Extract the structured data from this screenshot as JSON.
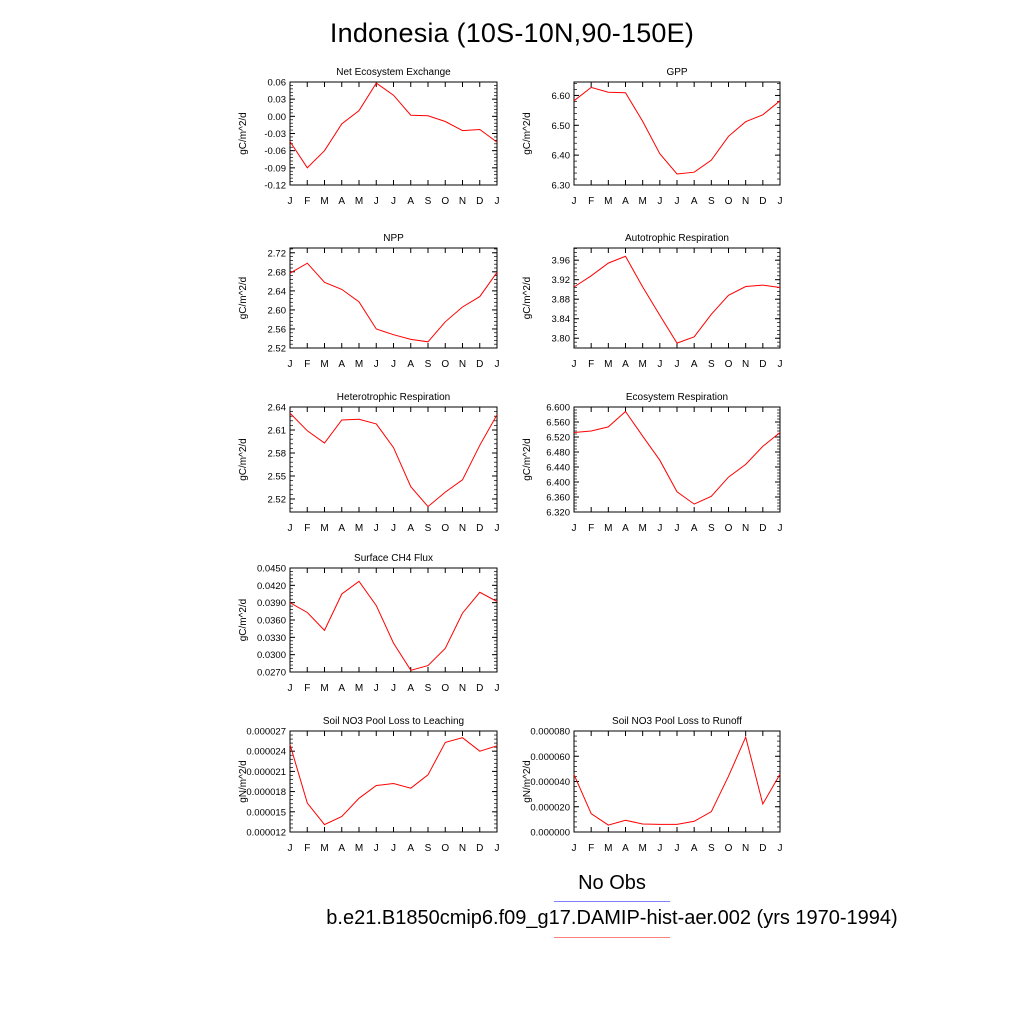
{
  "title": "Indonesia (10S-10N,90-150E)",
  "legend": {
    "obs_label": "No Obs",
    "obs_color": "#7f7fff",
    "case_label": "b.e21.B1850cmip6.f09_g17.DAMIP-hist-aer.002 (yrs 1970-1994)",
    "case_color": "#ff7f7f"
  },
  "chart_data": [
    {
      "type": "line",
      "title": "Net Ecosystem Exchange",
      "ylabel": "gC/m^2/d",
      "x": [
        "J",
        "F",
        "M",
        "A",
        "M",
        "J",
        "J",
        "A",
        "S",
        "O",
        "N",
        "D",
        "J"
      ],
      "yticks": [
        "0.06",
        "0.03",
        "0.00",
        "-0.03",
        "-0.06",
        "-0.09",
        "-0.12"
      ],
      "ylim": [
        -0.12,
        0.06
      ],
      "series": [
        {
          "values": [
            -0.044,
            -0.09,
            -0.06,
            -0.013,
            0.01,
            0.058,
            0.037,
            0.002,
            0.001,
            -0.009,
            -0.025,
            -0.023,
            -0.045
          ],
          "color": "#ff0000"
        }
      ]
    },
    {
      "type": "line",
      "title": "GPP",
      "ylabel": "gC/m^2/d",
      "x": [
        "J",
        "F",
        "M",
        "A",
        "M",
        "J",
        "J",
        "A",
        "S",
        "O",
        "N",
        "D",
        "J"
      ],
      "yticks": [
        "6.60",
        "6.50",
        "6.40",
        "6.30"
      ],
      "ylim": [
        6.3,
        6.645
      ],
      "series": [
        {
          "values": [
            6.582,
            6.627,
            6.611,
            6.609,
            6.513,
            6.405,
            6.337,
            6.343,
            6.383,
            6.463,
            6.512,
            6.535,
            6.582
          ],
          "color": "#ff0000"
        }
      ]
    },
    {
      "type": "line",
      "title": "NPP",
      "ylabel": "gC/m^2/d",
      "x": [
        "J",
        "F",
        "M",
        "A",
        "M",
        "J",
        "J",
        "A",
        "S",
        "O",
        "N",
        "D",
        "J"
      ],
      "yticks": [
        "2.72",
        "2.68",
        "2.64",
        "2.60",
        "2.56",
        "2.52"
      ],
      "ylim": [
        2.52,
        2.73
      ],
      "series": [
        {
          "values": [
            2.677,
            2.698,
            2.658,
            2.643,
            2.617,
            2.56,
            2.548,
            2.538,
            2.533,
            2.575,
            2.606,
            2.628,
            2.679
          ],
          "color": "#ff0000"
        }
      ]
    },
    {
      "type": "line",
      "title": "Autotrophic Respiration",
      "ylabel": "gC/m^2/d",
      "x": [
        "J",
        "F",
        "M",
        "A",
        "M",
        "J",
        "J",
        "A",
        "S",
        "O",
        "N",
        "D",
        "J"
      ],
      "yticks": [
        "3.96",
        "3.92",
        "3.88",
        "3.84",
        "3.80"
      ],
      "ylim": [
        3.78,
        3.985
      ],
      "series": [
        {
          "values": [
            3.905,
            3.928,
            3.954,
            3.968,
            3.905,
            3.847,
            3.79,
            3.803,
            3.849,
            3.888,
            3.906,
            3.909,
            3.904
          ],
          "color": "#ff0000"
        }
      ]
    },
    {
      "type": "line",
      "title": "Heterotrophic Respiration",
      "ylabel": "gC/m^2/d",
      "x": [
        "J",
        "F",
        "M",
        "A",
        "M",
        "J",
        "J",
        "A",
        "S",
        "O",
        "N",
        "D",
        "J"
      ],
      "yticks": [
        "2.64",
        "2.61",
        "2.58",
        "2.55",
        "2.52"
      ],
      "ylim": [
        2.503,
        2.64
      ],
      "series": [
        {
          "values": [
            2.632,
            2.609,
            2.593,
            2.623,
            2.624,
            2.618,
            2.587,
            2.536,
            2.51,
            2.529,
            2.545,
            2.59,
            2.63
          ],
          "color": "#ff0000"
        }
      ]
    },
    {
      "type": "line",
      "title": "Ecosystem Respiration",
      "ylabel": "gC/m^2/d",
      "x": [
        "J",
        "F",
        "M",
        "A",
        "M",
        "J",
        "J",
        "A",
        "S",
        "O",
        "N",
        "D",
        "J"
      ],
      "yticks": [
        "6.600",
        "6.560",
        "6.520",
        "6.480",
        "6.440",
        "6.400",
        "6.360",
        "6.320"
      ],
      "ylim": [
        6.32,
        6.6
      ],
      "series": [
        {
          "values": [
            6.532,
            6.536,
            6.547,
            6.588,
            6.522,
            6.458,
            6.374,
            6.341,
            6.362,
            6.413,
            6.447,
            6.495,
            6.532
          ],
          "color": "#ff0000"
        }
      ]
    },
    {
      "type": "line",
      "title": "Surface CH4 Flux",
      "ylabel": "gC/m^2/d",
      "x": [
        "J",
        "F",
        "M",
        "A",
        "M",
        "J",
        "J",
        "A",
        "S",
        "O",
        "N",
        "D",
        "J"
      ],
      "yticks": [
        "0.0450",
        "0.0420",
        "0.0390",
        "0.0360",
        "0.0330",
        "0.0300",
        "0.0270"
      ],
      "ylim": [
        0.027,
        0.045
      ],
      "series": [
        {
          "values": [
            0.039,
            0.0373,
            0.0342,
            0.0405,
            0.0427,
            0.0385,
            0.032,
            0.0273,
            0.0281,
            0.0311,
            0.0372,
            0.0408,
            0.0392
          ],
          "color": "#ff0000"
        }
      ]
    },
    {
      "type": "line",
      "title": "Soil NO3 Pool Loss to Leaching",
      "ylabel": "gN/m^2/d",
      "x": [
        "J",
        "F",
        "M",
        "A",
        "M",
        "J",
        "J",
        "A",
        "S",
        "O",
        "N",
        "D",
        "J"
      ],
      "yticks": [
        "0.000027",
        "0.000024",
        "0.000021",
        "0.000018",
        "0.000015",
        "0.000012"
      ],
      "ylim": [
        1.2e-05,
        2.7e-05
      ],
      "series": [
        {
          "values": [
            2.5e-05,
            1.63e-05,
            1.31e-05,
            1.43e-05,
            1.7e-05,
            1.89e-05,
            1.92e-05,
            1.85e-05,
            2.05e-05,
            2.53e-05,
            2.6e-05,
            2.4e-05,
            2.48e-05
          ],
          "color": "#ff0000"
        }
      ]
    },
    {
      "type": "line",
      "title": "Soil NO3 Pool Loss to Runoff",
      "ylabel": "gN/m^2/d",
      "x": [
        "J",
        "F",
        "M",
        "A",
        "M",
        "J",
        "J",
        "A",
        "S",
        "O",
        "N",
        "D",
        "J"
      ],
      "yticks": [
        "0.000080",
        "0.000060",
        "0.000040",
        "0.000020",
        "0.000000"
      ],
      "ylim": [
        0.0,
        8e-05
      ],
      "series": [
        {
          "values": [
            4.55e-05,
            1.45e-05,
            5.5e-06,
            9.3e-06,
            6.3e-06,
            6e-06,
            6e-06,
            8.5e-06,
            1.61e-05,
            4.42e-05,
            7.52e-05,
            2.22e-05,
            4.57e-05
          ],
          "color": "#ff0000"
        }
      ]
    }
  ]
}
